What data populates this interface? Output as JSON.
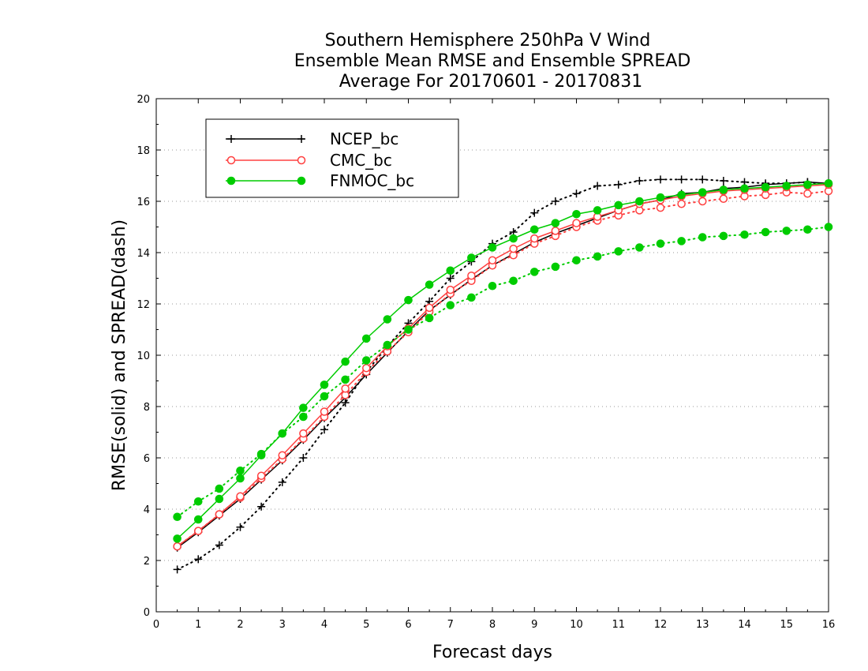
{
  "chart_data": {
    "type": "line",
    "title_lines": [
      "Southern Hemisphere 250hPa V Wind",
      "Ensemble Mean RMSE and Ensemble SPREAD",
      "Average For 20170601 - 20170831"
    ],
    "xlabel": "Forecast days",
    "ylabel": "RMSE(solid) and SPREAD(dash)",
    "xlim": [
      0,
      16
    ],
    "ylim": [
      0,
      20
    ],
    "xticks": [
      0,
      1,
      2,
      3,
      4,
      5,
      6,
      7,
      8,
      9,
      10,
      11,
      12,
      13,
      14,
      15,
      16
    ],
    "yticks": [
      0,
      2,
      4,
      6,
      8,
      10,
      12,
      14,
      16,
      18,
      20
    ],
    "grid": "horizontal dotted",
    "legend_position": "top-left",
    "x": [
      0.5,
      1,
      1.5,
      2,
      2.5,
      3,
      3.5,
      4,
      4.5,
      5,
      5.5,
      6,
      6.5,
      7,
      7.5,
      8,
      8.5,
      9,
      9.5,
      10,
      10.5,
      11,
      11.5,
      12,
      12.5,
      13,
      13.5,
      14,
      14.5,
      15,
      15.5,
      16
    ],
    "series": [
      {
        "name": "NCEP_bc",
        "color": "#000000",
        "marker": "plus",
        "rmse": [
          2.5,
          3.1,
          3.75,
          4.4,
          5.15,
          5.9,
          6.7,
          7.55,
          8.35,
          9.25,
          10.1,
          10.95,
          11.75,
          12.35,
          12.95,
          13.5,
          13.95,
          14.4,
          14.75,
          15.05,
          15.35,
          15.65,
          15.9,
          16.05,
          16.3,
          16.35,
          16.5,
          16.55,
          16.65,
          16.7,
          16.75,
          16.7
        ],
        "spread": [
          1.65,
          2.05,
          2.6,
          3.3,
          4.1,
          5.05,
          6.0,
          7.1,
          8.15,
          9.35,
          10.35,
          11.25,
          12.1,
          13.0,
          13.65,
          14.35,
          14.8,
          15.55,
          16.0,
          16.3,
          16.6,
          16.65,
          16.8,
          16.85,
          16.85,
          16.85,
          16.8,
          16.75,
          16.7,
          16.7,
          16.75,
          16.65
        ]
      },
      {
        "name": "CMC_bc",
        "color": "#ff4040",
        "marker": "open-circle",
        "rmse": [
          2.55,
          3.15,
          3.8,
          4.5,
          5.3,
          6.1,
          6.95,
          7.8,
          8.7,
          9.5,
          10.35,
          11.05,
          11.85,
          12.55,
          13.1,
          13.7,
          14.15,
          14.55,
          14.85,
          15.15,
          15.4,
          15.65,
          15.9,
          16.05,
          16.2,
          16.3,
          16.4,
          16.45,
          16.5,
          16.55,
          16.6,
          16.65
        ],
        "spread": [
          2.55,
          3.15,
          3.8,
          4.45,
          5.2,
          5.95,
          6.75,
          7.6,
          8.45,
          9.35,
          10.15,
          10.9,
          11.7,
          12.4,
          12.9,
          13.5,
          13.9,
          14.35,
          14.65,
          15.0,
          15.25,
          15.45,
          15.65,
          15.75,
          15.9,
          16.0,
          16.1,
          16.2,
          16.25,
          16.35,
          16.3,
          16.4
        ]
      },
      {
        "name": "FNMOC_bc",
        "color": "#00cc00",
        "marker": "filled-circle",
        "rmse": [
          2.85,
          3.6,
          4.4,
          5.2,
          6.1,
          6.95,
          7.95,
          8.85,
          9.75,
          10.65,
          11.4,
          12.15,
          12.75,
          13.3,
          13.8,
          14.2,
          14.55,
          14.9,
          15.15,
          15.5,
          15.65,
          15.85,
          16.0,
          16.15,
          16.25,
          16.35,
          16.45,
          16.5,
          16.55,
          16.6,
          16.65,
          16.7
        ],
        "spread": [
          3.7,
          4.3,
          4.8,
          5.5,
          6.15,
          6.95,
          7.6,
          8.4,
          9.05,
          9.8,
          10.4,
          11.0,
          11.45,
          11.95,
          12.25,
          12.7,
          12.9,
          13.25,
          13.45,
          13.7,
          13.85,
          14.05,
          14.2,
          14.35,
          14.45,
          14.6,
          14.65,
          14.7,
          14.8,
          14.85,
          14.9,
          15.0
        ]
      }
    ]
  }
}
